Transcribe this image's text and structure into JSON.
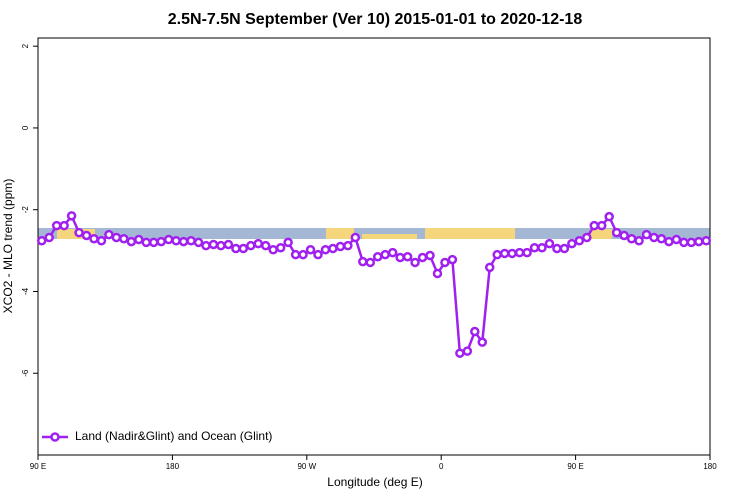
{
  "chart_data": {
    "type": "line",
    "title": "2.5N-7.5N September (Ver 10)   2015-01-01 to 2020-12-18",
    "x_label": "Longitude (deg E)",
    "y_label": "XCO2 - MLO trend (ppm)",
    "xlim": [
      90,
      540
    ],
    "xticks": [
      {
        "value": 90,
        "label": "90 E"
      },
      {
        "value": 180,
        "label": "180"
      },
      {
        "value": 270,
        "label": "90 W"
      },
      {
        "value": 360,
        "label": "0"
      },
      {
        "value": 450,
        "label": "90 E"
      },
      {
        "value": 540,
        "label": "180"
      }
    ],
    "ylim": [
      -8,
      2.2
    ],
    "yticks": [
      2,
      0,
      -2,
      -4,
      -6
    ],
    "legend": "bottom-left",
    "x": [
      92.5,
      97.5,
      102.5,
      107.5,
      112.5,
      117.5,
      122.5,
      127.5,
      132.5,
      137.5,
      142.5,
      147.5,
      152.5,
      157.5,
      162.5,
      167.5,
      172.5,
      177.5,
      182.5,
      187.5,
      192.5,
      197.5,
      202.5,
      207.5,
      212.5,
      217.5,
      222.5,
      227.5,
      232.5,
      237.5,
      242.5,
      247.5,
      252.5,
      257.5,
      262.5,
      267.5,
      272.5,
      277.5,
      282.5,
      287.5,
      292.5,
      297.5,
      302.5,
      307.5,
      312.5,
      317.5,
      322.5,
      327.5,
      332.5,
      337.5,
      342.5,
      347.5,
      352.5,
      357.5,
      362.5,
      367.5,
      372.5,
      377.5,
      382.5,
      387.5,
      392.5,
      397.5,
      402.5,
      407.5,
      412.5,
      417.5,
      422.5,
      427.5,
      432.5,
      437.5,
      442.5,
      447.5,
      452.5,
      457.5,
      462.5,
      467.5,
      472.5,
      477.5,
      482.5,
      487.5,
      492.5,
      497.5,
      502.5,
      507.5,
      512.5,
      517.5,
      522.5,
      527.5,
      532.5,
      537.5
    ],
    "series": [
      {
        "name": "Land (Nadir&Glint) and Ocean (Glint)",
        "color": "#a020f0",
        "values": [
          -2.76,
          -2.68,
          -2.39,
          -2.39,
          -2.15,
          -2.56,
          -2.63,
          -2.71,
          -2.76,
          -2.61,
          -2.68,
          -2.71,
          -2.78,
          -2.73,
          -2.8,
          -2.8,
          -2.78,
          -2.73,
          -2.76,
          -2.78,
          -2.76,
          -2.8,
          -2.88,
          -2.85,
          -2.88,
          -2.85,
          -2.95,
          -2.95,
          -2.88,
          -2.83,
          -2.88,
          -2.98,
          -2.93,
          -2.8,
          -3.1,
          -3.1,
          -2.98,
          -3.1,
          -2.98,
          -2.95,
          -2.9,
          -2.88,
          -2.68,
          -3.27,
          -3.29,
          -3.15,
          -3.1,
          -3.05,
          -3.17,
          -3.15,
          -3.29,
          -3.17,
          -3.12,
          -3.56,
          -3.29,
          -3.22,
          -5.51,
          -5.46,
          -4.98,
          -5.24,
          -3.41,
          -3.1,
          -3.07,
          -3.07,
          -3.05,
          -3.05,
          -2.93,
          -2.93,
          -2.83,
          -2.95,
          -2.95,
          -2.83,
          -2.76,
          -2.68,
          -2.39,
          -2.39,
          -2.17,
          -2.56,
          -2.63,
          -2.71,
          -2.76,
          -2.61,
          -2.68,
          -2.71,
          -2.78,
          -2.73,
          -2.8,
          -2.8,
          -2.78,
          -2.76
        ]
      }
    ]
  }
}
